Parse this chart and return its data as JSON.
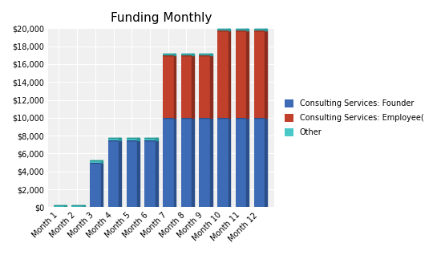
{
  "title": "Funding Monthly",
  "categories": [
    "Month 1",
    "Month 2",
    "Month 3",
    "Month 4",
    "Month 5",
    "Month 6",
    "Month 7",
    "Month 8",
    "Month 9",
    "Month 10",
    "Month 11",
    "Month 12"
  ],
  "founder": [
    0,
    0,
    5000,
    7500,
    7500,
    7500,
    10000,
    10000,
    10000,
    10000,
    10000,
    10000
  ],
  "employee": [
    0,
    0,
    0,
    0,
    0,
    0,
    7000,
    7000,
    7000,
    9750,
    9750,
    9750
  ],
  "other": [
    200,
    200,
    200,
    200,
    200,
    200,
    200,
    200,
    200,
    200,
    200,
    200
  ],
  "founder_color": "#3D6BB5",
  "founder_side_color": "#2A4F8A",
  "employee_color": "#C0402B",
  "employee_side_color": "#8B2D1E",
  "other_color": "#4BC8C8",
  "other_side_color": "#2A9999",
  "bg_color": "#FFFFFF",
  "plot_bg_color": "#F0F0F0",
  "grid_color": "#FFFFFF",
  "ylim": [
    0,
    20000
  ],
  "ytick_step": 2000,
  "title_fontsize": 11,
  "tick_fontsize": 7,
  "legend_labels": [
    "Consulting Services: Founder",
    "Consulting Services: Employee(",
    "Other"
  ],
  "figsize": [
    5.5,
    3.18
  ],
  "dpi": 100
}
